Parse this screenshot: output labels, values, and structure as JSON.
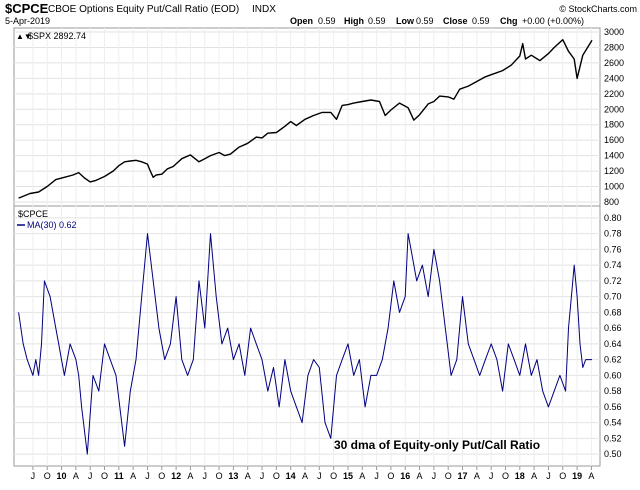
{
  "header": {
    "symbol": "$CPCE",
    "name": "CBOE Options Equity Put/Call Ratio (EOD)",
    "exchange": "INDX",
    "date": "5-Apr-2019",
    "copyright": "© StockCharts.com",
    "open_label": "Open",
    "open": "0.59",
    "high_label": "High",
    "high": "0.59",
    "low_label": "Low",
    "low": "0.59",
    "close_label": "Close",
    "close": "0.59",
    "chg_label": "Chg",
    "chg": "+0.00 (+0.00%)"
  },
  "top_panel": {
    "legend": "$SPX 2892.74"
  },
  "bottom_panel": {
    "legend_symbol": "$CPCE",
    "legend_ma": "MA(30) 0.62",
    "annotation": "30 dma of Equity-only Put/Call Ratio"
  },
  "colors": {
    "price_line": "#000000",
    "ma_line": "#000080",
    "grid": "#dddddd",
    "frame": "#999999"
  },
  "chart_data": [
    {
      "type": "line",
      "series": [
        {
          "name": "$SPX",
          "x": [
            2009.25,
            2009.45,
            2009.6,
            2009.75,
            2009.9,
            2010.05,
            2010.2,
            2010.3,
            2010.4,
            2010.5,
            2010.6,
            2010.75,
            2010.9,
            2011.0,
            2011.1,
            2011.2,
            2011.3,
            2011.4,
            2011.5,
            2011.55,
            2011.6,
            2011.65,
            2011.75,
            2011.85,
            2011.95,
            2012.1,
            2012.25,
            2012.4,
            2012.5,
            2012.6,
            2012.75,
            2012.85,
            2012.95,
            2013.1,
            2013.25,
            2013.4,
            2013.5,
            2013.6,
            2013.75,
            2013.9,
            2014.0,
            2014.1,
            2014.25,
            2014.4,
            2014.55,
            2014.7,
            2014.8,
            2014.9,
            2015.0,
            2015.1,
            2015.25,
            2015.4,
            2015.55,
            2015.65,
            2015.75,
            2015.9,
            2016.05,
            2016.15,
            2016.25,
            2016.4,
            2016.5,
            2016.6,
            2016.75,
            2016.85,
            2016.95,
            2017.1,
            2017.25,
            2017.4,
            2017.55,
            2017.7,
            2017.85,
            2018.0,
            2018.05,
            2018.1,
            2018.2,
            2018.35,
            2018.5,
            2018.6,
            2018.75,
            2018.85,
            2018.95,
            2019.0,
            2019.1,
            2019.26
          ],
          "values": [
            850,
            910,
            930,
            1000,
            1090,
            1120,
            1150,
            1180,
            1110,
            1060,
            1080,
            1130,
            1200,
            1270,
            1320,
            1330,
            1340,
            1320,
            1290,
            1200,
            1120,
            1150,
            1160,
            1230,
            1260,
            1360,
            1410,
            1320,
            1360,
            1400,
            1440,
            1400,
            1420,
            1510,
            1560,
            1640,
            1630,
            1690,
            1700,
            1780,
            1840,
            1790,
            1870,
            1920,
            1960,
            1960,
            1870,
            2050,
            2060,
            2080,
            2100,
            2120,
            2100,
            1920,
            1990,
            2080,
            2020,
            1860,
            1930,
            2070,
            2100,
            2170,
            2160,
            2130,
            2260,
            2300,
            2360,
            2420,
            2460,
            2500,
            2570,
            2690,
            2850,
            2650,
            2700,
            2630,
            2720,
            2800,
            2900,
            2750,
            2650,
            2400,
            2700,
            2892.74
          ]
        }
      ],
      "ylim": [
        800,
        3000
      ],
      "y_ticks": [
        800,
        1000,
        1200,
        1400,
        1600,
        1800,
        2000,
        2200,
        2400,
        2600,
        2800,
        3000
      ],
      "y_tick_labels": [
        "800",
        "1000",
        "1200",
        "1400",
        "1600",
        "1800",
        "2000",
        "2200",
        "2400",
        "2600",
        "2800",
        "3000"
      ]
    },
    {
      "type": "line",
      "series": [
        {
          "name": "MA(30)",
          "x": [
            2009.25,
            2009.33,
            2009.4,
            2009.5,
            2009.55,
            2009.6,
            2009.65,
            2009.7,
            2009.8,
            2009.9,
            2009.95,
            2010.0,
            2010.05,
            2010.15,
            2010.25,
            2010.3,
            2010.35,
            2010.45,
            2010.55,
            2010.65,
            2010.75,
            2010.85,
            2010.95,
            2011.05,
            2011.1,
            2011.2,
            2011.3,
            2011.4,
            2011.5,
            2011.6,
            2011.7,
            2011.8,
            2011.9,
            2012.0,
            2012.1,
            2012.2,
            2012.3,
            2012.4,
            2012.5,
            2012.6,
            2012.7,
            2012.8,
            2012.9,
            2013.0,
            2013.1,
            2013.2,
            2013.3,
            2013.4,
            2013.5,
            2013.6,
            2013.7,
            2013.8,
            2013.9,
            2014.0,
            2014.1,
            2014.2,
            2014.3,
            2014.4,
            2014.5,
            2014.6,
            2014.7,
            2014.8,
            2014.9,
            2015.0,
            2015.1,
            2015.2,
            2015.3,
            2015.4,
            2015.5,
            2015.6,
            2015.7,
            2015.8,
            2015.9,
            2016.0,
            2016.05,
            2016.1,
            2016.2,
            2016.3,
            2016.4,
            2016.5,
            2016.6,
            2016.7,
            2016.8,
            2016.9,
            2017.0,
            2017.1,
            2017.2,
            2017.3,
            2017.4,
            2017.5,
            2017.6,
            2017.7,
            2017.8,
            2017.9,
            2018.0,
            2018.1,
            2018.2,
            2018.3,
            2018.4,
            2018.5,
            2018.6,
            2018.7,
            2018.8,
            2018.85,
            2018.9,
            2018.95,
            2019.0,
            2019.05,
            2019.1,
            2019.15,
            2019.26
          ],
          "values": [
            0.68,
            0.64,
            0.62,
            0.6,
            0.62,
            0.6,
            0.64,
            0.72,
            0.7,
            0.66,
            0.64,
            0.62,
            0.6,
            0.64,
            0.62,
            0.6,
            0.56,
            0.5,
            0.6,
            0.58,
            0.64,
            0.62,
            0.6,
            0.54,
            0.51,
            0.58,
            0.62,
            0.7,
            0.78,
            0.72,
            0.66,
            0.62,
            0.64,
            0.7,
            0.62,
            0.6,
            0.62,
            0.72,
            0.66,
            0.78,
            0.7,
            0.64,
            0.66,
            0.62,
            0.64,
            0.6,
            0.66,
            0.64,
            0.62,
            0.58,
            0.61,
            0.56,
            0.62,
            0.58,
            0.56,
            0.54,
            0.6,
            0.62,
            0.61,
            0.54,
            0.52,
            0.6,
            0.62,
            0.64,
            0.6,
            0.62,
            0.56,
            0.6,
            0.6,
            0.62,
            0.66,
            0.72,
            0.68,
            0.7,
            0.78,
            0.76,
            0.72,
            0.74,
            0.7,
            0.76,
            0.72,
            0.66,
            0.6,
            0.62,
            0.7,
            0.64,
            0.62,
            0.6,
            0.62,
            0.64,
            0.62,
            0.58,
            0.64,
            0.62,
            0.6,
            0.64,
            0.6,
            0.62,
            0.58,
            0.56,
            0.58,
            0.6,
            0.58,
            0.66,
            0.7,
            0.74,
            0.7,
            0.64,
            0.61,
            0.62,
            0.62
          ]
        }
      ],
      "ylim": [
        0.49,
        0.81
      ],
      "y_ticks": [
        0.5,
        0.52,
        0.54,
        0.56,
        0.58,
        0.6,
        0.62,
        0.64,
        0.66,
        0.68,
        0.7,
        0.72,
        0.74,
        0.76,
        0.78,
        0.8
      ],
      "y_tick_labels": [
        "0.50",
        "0.52",
        "0.54",
        "0.56",
        "0.58",
        "0.60",
        "0.62",
        "0.64",
        "0.66",
        "0.68",
        "0.70",
        "0.72",
        "0.74",
        "0.76",
        "0.78",
        "0.80"
      ]
    }
  ],
  "x_axis": {
    "xlim": [
      2009.17,
      2019.4
    ],
    "ticks": [
      {
        "x": 2009.5,
        "label": "J"
      },
      {
        "x": 2009.75,
        "label": "O"
      },
      {
        "x": 2010.0,
        "label": "10"
      },
      {
        "x": 2010.25,
        "label": "A"
      },
      {
        "x": 2010.5,
        "label": "J"
      },
      {
        "x": 2010.75,
        "label": "O"
      },
      {
        "x": 2011.0,
        "label": "11"
      },
      {
        "x": 2011.25,
        "label": "A"
      },
      {
        "x": 2011.5,
        "label": "J"
      },
      {
        "x": 2011.75,
        "label": "O"
      },
      {
        "x": 2012.0,
        "label": "12"
      },
      {
        "x": 2012.25,
        "label": "A"
      },
      {
        "x": 2012.5,
        "label": "J"
      },
      {
        "x": 2012.75,
        "label": "O"
      },
      {
        "x": 2013.0,
        "label": "13"
      },
      {
        "x": 2013.25,
        "label": "A"
      },
      {
        "x": 2013.5,
        "label": "J"
      },
      {
        "x": 2013.75,
        "label": "O"
      },
      {
        "x": 2014.0,
        "label": "14"
      },
      {
        "x": 2014.25,
        "label": "A"
      },
      {
        "x": 2014.5,
        "label": "J"
      },
      {
        "x": 2014.75,
        "label": "O"
      },
      {
        "x": 2015.0,
        "label": "15"
      },
      {
        "x": 2015.25,
        "label": "A"
      },
      {
        "x": 2015.5,
        "label": "J"
      },
      {
        "x": 2015.75,
        "label": "O"
      },
      {
        "x": 2016.0,
        "label": "16"
      },
      {
        "x": 2016.25,
        "label": "A"
      },
      {
        "x": 2016.5,
        "label": "J"
      },
      {
        "x": 2016.75,
        "label": "O"
      },
      {
        "x": 2017.0,
        "label": "17"
      },
      {
        "x": 2017.25,
        "label": "A"
      },
      {
        "x": 2017.5,
        "label": "J"
      },
      {
        "x": 2017.75,
        "label": "O"
      },
      {
        "x": 2018.0,
        "label": "18"
      },
      {
        "x": 2018.25,
        "label": "A"
      },
      {
        "x": 2018.5,
        "label": "J"
      },
      {
        "x": 2018.75,
        "label": "O"
      },
      {
        "x": 2019.0,
        "label": "19"
      },
      {
        "x": 2019.25,
        "label": "A"
      }
    ],
    "year_ticks": [
      "10",
      "11",
      "12",
      "13",
      "14",
      "15",
      "16",
      "17",
      "18",
      "19"
    ]
  }
}
